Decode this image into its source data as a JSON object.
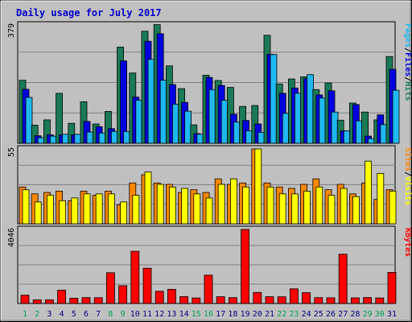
{
  "chart_data": {
    "type": "bar",
    "title": "Daily usage for July 2017",
    "categories": [
      "1",
      "2",
      "3",
      "4",
      "5",
      "6",
      "7",
      "8",
      "9",
      "10",
      "11",
      "12",
      "13",
      "14",
      "15",
      "16",
      "17",
      "18",
      "19",
      "20",
      "21",
      "22",
      "23",
      "24",
      "25",
      "26",
      "27",
      "28",
      "29",
      "30",
      "31"
    ],
    "weekend_days": [
      "1",
      "2",
      "8",
      "9",
      "15",
      "16",
      "22",
      "23",
      "29",
      "30"
    ],
    "panels": [
      {
        "id": "hits-files-pages",
        "ymax": 379,
        "ytick_label": "379",
        "legend": [
          "Pages",
          "/",
          "Files",
          "/",
          "Hits"
        ],
        "series": [
          {
            "name": "Hits",
            "color": "#1a7a55",
            "values": [
              202,
              58,
              75,
              160,
              64,
              133,
              62,
              102,
              308,
              225,
              359,
              380,
              248,
              175,
              59,
              218,
              201,
              179,
              118,
              121,
              346,
              190,
              206,
              213,
              172,
              193,
              74,
              129,
              100,
              75,
              278
            ]
          },
          {
            "name": "Files",
            "color": "#0000e0",
            "values": [
              173,
              24,
              27,
              27,
              27,
              70,
              53,
              47,
              264,
              148,
              327,
              351,
              188,
              131,
              31,
              211,
              185,
              93,
              73,
              62,
              285,
              160,
              177,
              207,
              155,
              168,
              40,
              124,
              23,
              91,
              237
            ]
          },
          {
            "name": "Pages",
            "color": "#20b8f0",
            "values": [
              147,
              18,
              23,
              29,
              29,
              36,
              33,
              38,
              38,
              138,
              269,
              202,
              125,
              103,
              29,
              172,
              138,
              68,
              40,
              35,
              284,
              96,
              160,
              220,
              145,
              100,
              40,
              72,
              15,
              60,
              170
            ]
          }
        ]
      },
      {
        "id": "sites-visits",
        "ymax": 55,
        "ytick_label": "55",
        "legend": [
          "Sites",
          "/",
          "Visits"
        ],
        "series": [
          {
            "name": "Sites",
            "color": "#ff8800",
            "values": [
              27,
              22,
              23,
              24,
              17,
              24,
              21,
              24,
              14,
              30,
              36,
              30,
              29,
              23,
              25,
              23,
              33,
              29,
              30,
              55,
              30,
              27,
              26,
              29,
              33,
              25,
              29,
              22,
              30,
              18,
              25
            ]
          },
          {
            "name": "Visits",
            "color": "#ffff00",
            "values": [
              25,
              16,
              21,
              17,
              19,
              22,
              22,
              22,
              16,
              21,
              38,
              29,
              27,
              26,
              22,
              19,
              29,
              33,
              27,
              55,
              27,
              22,
              22,
              24,
              27,
              21,
              26,
              20,
              46,
              37,
              24
            ]
          }
        ]
      },
      {
        "id": "kbytes",
        "ymax": 4046,
        "ytick_label": "4046",
        "legend": [
          "KBytes"
        ],
        "series": [
          {
            "name": "KBytes",
            "color": "#ff0000",
            "values": [
              452,
              200,
              200,
              724,
              291,
              321,
              317,
              1678,
              970,
              2855,
              1925,
              669,
              776,
              376,
              303,
              1550,
              369,
              322,
              4046,
              603,
              370,
              364,
              800,
              593,
              320,
              313,
              2690,
              308,
              324,
              304,
              1698
            ]
          }
        ]
      }
    ]
  }
}
